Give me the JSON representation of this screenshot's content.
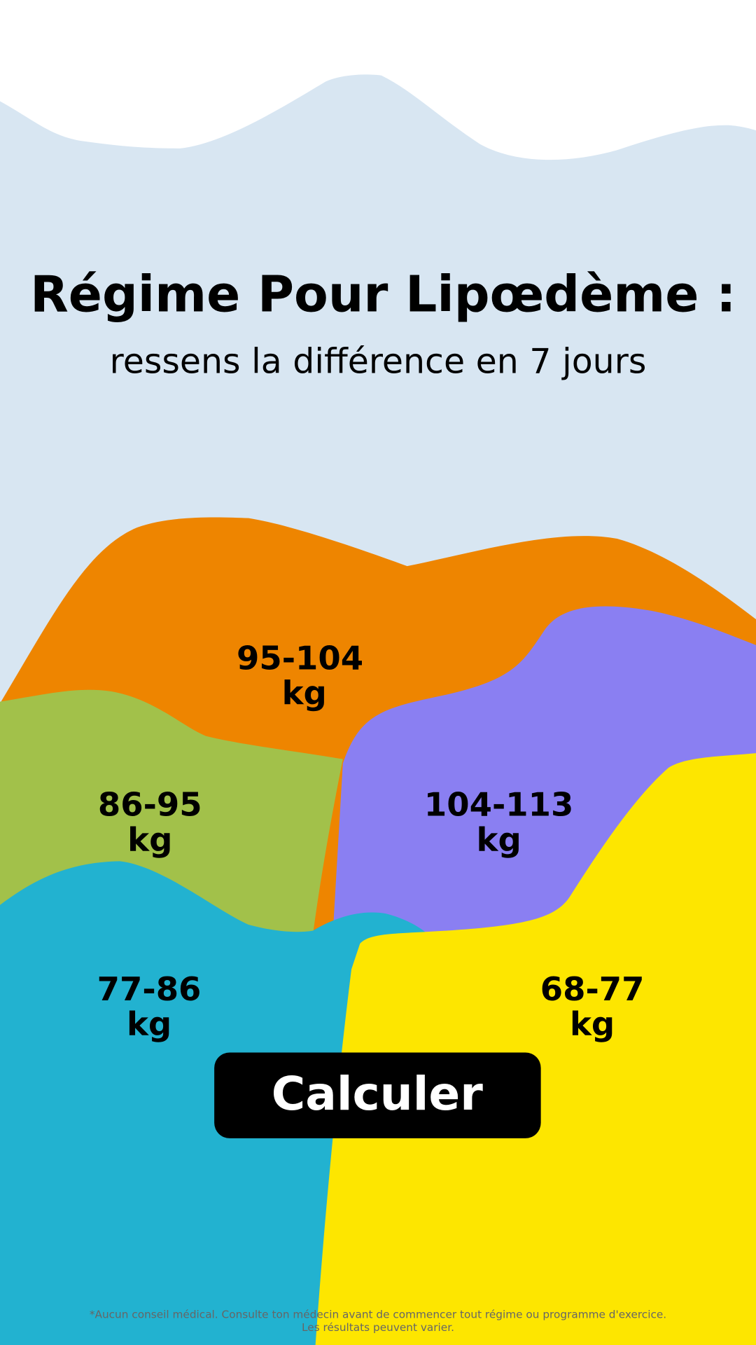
{
  "header": {
    "title": "Régime Pour Lipœdème :",
    "subtitle": "ressens la différence en 7 jours"
  },
  "options": [
    {
      "range": "95-104",
      "unit": "kg"
    },
    {
      "range": "86-95",
      "unit": "kg"
    },
    {
      "range": "104-113",
      "unit": "kg"
    },
    {
      "range": "77-86",
      "unit": "kg"
    },
    {
      "range": "68-77",
      "unit": "kg"
    }
  ],
  "button": {
    "label": "Calculer"
  },
  "disclaimer": {
    "lines": [
      "*Aucun conseil médical. Consulte ton médecin avant de commencer tout régime ou programme d'exercice.",
      "Les résultats peuvent varier."
    ]
  }
}
